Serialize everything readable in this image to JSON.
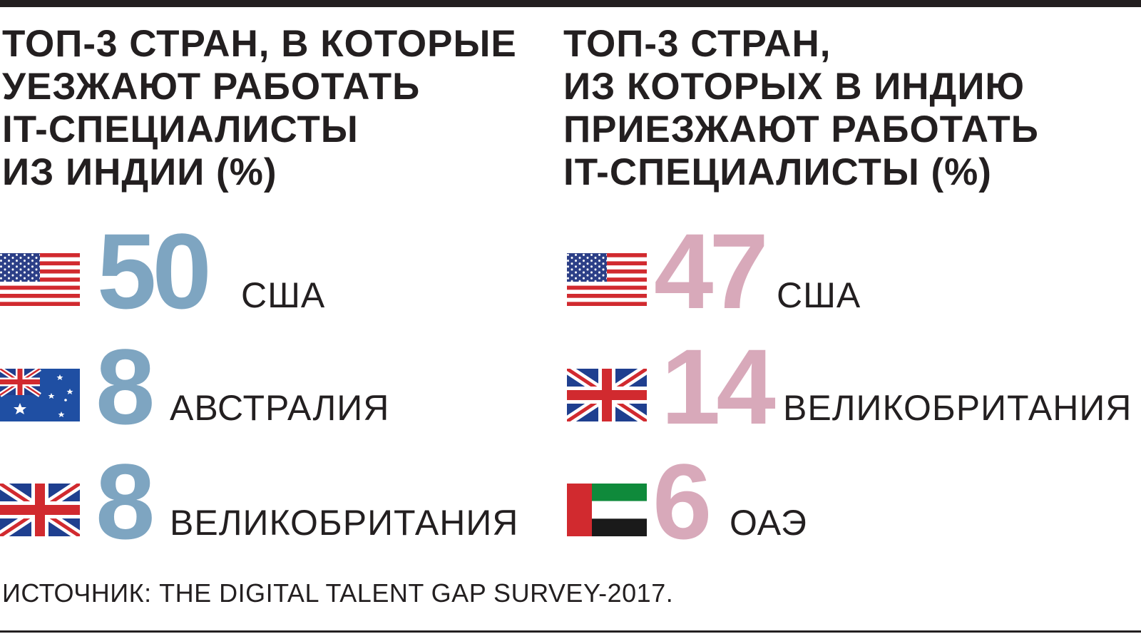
{
  "colors": {
    "left_value": "#7ea5c1",
    "right_value": "#d8a9ba",
    "text": "#231f20",
    "rule": "#231f20"
  },
  "chart_data": [
    {
      "type": "table",
      "title_lines": [
        "ТОП-3 СТРАН, В КОТОРЫЕ",
        "УЕЗЖАЮТ РАБОТАТЬ",
        "IT-СПЕЦИАЛИСТЫ",
        "ИЗ ИНДИИ (%)"
      ],
      "rows": [
        {
          "value": "50",
          "country": "США",
          "flag_icon": "usa-flag-icon"
        },
        {
          "value": "8",
          "country": "АВСТРАЛИЯ",
          "flag_icon": "australia-flag-icon"
        },
        {
          "value": "8",
          "country": "ВЕЛИКОБРИТАНИЯ",
          "flag_icon": "uk-flag-icon"
        }
      ]
    },
    {
      "type": "table",
      "title_lines": [
        "ТОП-3 СТРАН,",
        "ИЗ КОТОРЫХ В ИНДИЮ",
        "ПРИЕЗЖАЮТ РАБОТАТЬ",
        "IT-СПЕЦИАЛИСТЫ (%)"
      ],
      "rows": [
        {
          "value": "47",
          "country": "США",
          "flag_icon": "usa-flag-icon"
        },
        {
          "value": "14",
          "country": "ВЕЛИКОБРИТАНИЯ",
          "flag_icon": "uk-flag-icon"
        },
        {
          "value": "6",
          "country": "ОАЭ",
          "flag_icon": "uae-flag-icon"
        }
      ]
    }
  ],
  "source": "ИСТОЧНИК: THE DIGITAL TALENT GAP SURVEY-2017."
}
